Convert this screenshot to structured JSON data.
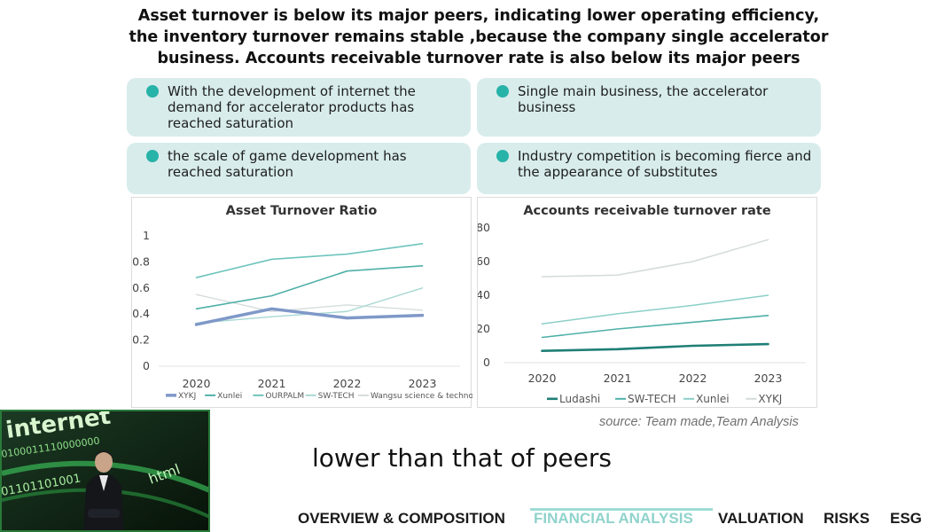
{
  "headline": {
    "line1": "Asset turnover  is below its major peers, indicating lower operating efficiency,",
    "line2": "the inventory turnover remains stable ,because the company single accelerator",
    "line3": "business. Accounts receivable turnover rate is also below its major peers"
  },
  "cards": [
    {
      "text": "With the development of internet the demand for accelerator products has reached saturation"
    },
    {
      "text": "Single main business, the accelerator business"
    },
    {
      "text": "the scale of game development has reached saturation"
    },
    {
      "text": "Industry competition is becoming fierce and the appearance of substitutes"
    }
  ],
  "chart_data": [
    {
      "type": "line",
      "title": "Asset Turnover Ratio",
      "categories": [
        "2020",
        "2021",
        "2022",
        "2023"
      ],
      "ylim": [
        0,
        1
      ],
      "yticks": [
        "0",
        "0.2",
        "0.4",
        "0.6",
        "0.8",
        "1"
      ],
      "series": [
        {
          "name": "XYKJ",
          "values": [
            0.32,
            0.44,
            0.37,
            0.39
          ],
          "color": "#7f98c8",
          "width": 3.5
        },
        {
          "name": "Xunlei",
          "values": [
            0.44,
            0.54,
            0.73,
            0.77
          ],
          "color": "#4fb0a8",
          "width": 1.6
        },
        {
          "name": "OURPALM",
          "values": [
            0.68,
            0.82,
            0.86,
            0.94
          ],
          "color": "#6ec4bd",
          "width": 1.6
        },
        {
          "name": "SW-TECH",
          "values": [
            0.33,
            0.38,
            0.42,
            0.6
          ],
          "color": "#a7d8d3",
          "width": 1.4
        },
        {
          "name": "Wangsu science & technology",
          "values": [
            0.55,
            0.42,
            0.47,
            0.43
          ],
          "color": "#d6dcdc",
          "width": 1.4
        }
      ]
    },
    {
      "type": "line",
      "title": "Accounts receivable turnover rate",
      "categories": [
        "2020",
        "2021",
        "2022",
        "2023"
      ],
      "ylim": [
        0,
        80
      ],
      "yticks": [
        "0",
        "20",
        "40",
        "60",
        "80"
      ],
      "series": [
        {
          "name": "Ludashi",
          "values": [
            7,
            8,
            10,
            11
          ],
          "color": "#1f7f76",
          "width": 2.6
        },
        {
          "name": "SW-TECH",
          "values": [
            15,
            20,
            24,
            28
          ],
          "color": "#4fb0a8",
          "width": 1.6
        },
        {
          "name": "Xunlei",
          "values": [
            23,
            29,
            34,
            40
          ],
          "color": "#8ccfc8",
          "width": 1.5
        },
        {
          "name": "XYKJ",
          "values": [
            51,
            52,
            60,
            73
          ],
          "color": "#d4dada",
          "width": 1.5
        }
      ]
    }
  ],
  "source_text": "source: Team made,Team Analysis",
  "subtitle": "lower than that of peers",
  "video": {
    "overlay_text": "internet",
    "code_text": "0100011110000000",
    "code_text2": "01101101001",
    "tag_text": "html"
  },
  "nav": {
    "items": [
      "OVERVIEW & COMPOSITION",
      "FINANCIAL ANALYSIS",
      "VALUATION",
      "RISKS",
      "ESG"
    ],
    "active_index": 1
  },
  "colors": {
    "accent": "#27b3a8",
    "card_bg": "#d8ecec",
    "nav_active": "#8fd3cc"
  }
}
